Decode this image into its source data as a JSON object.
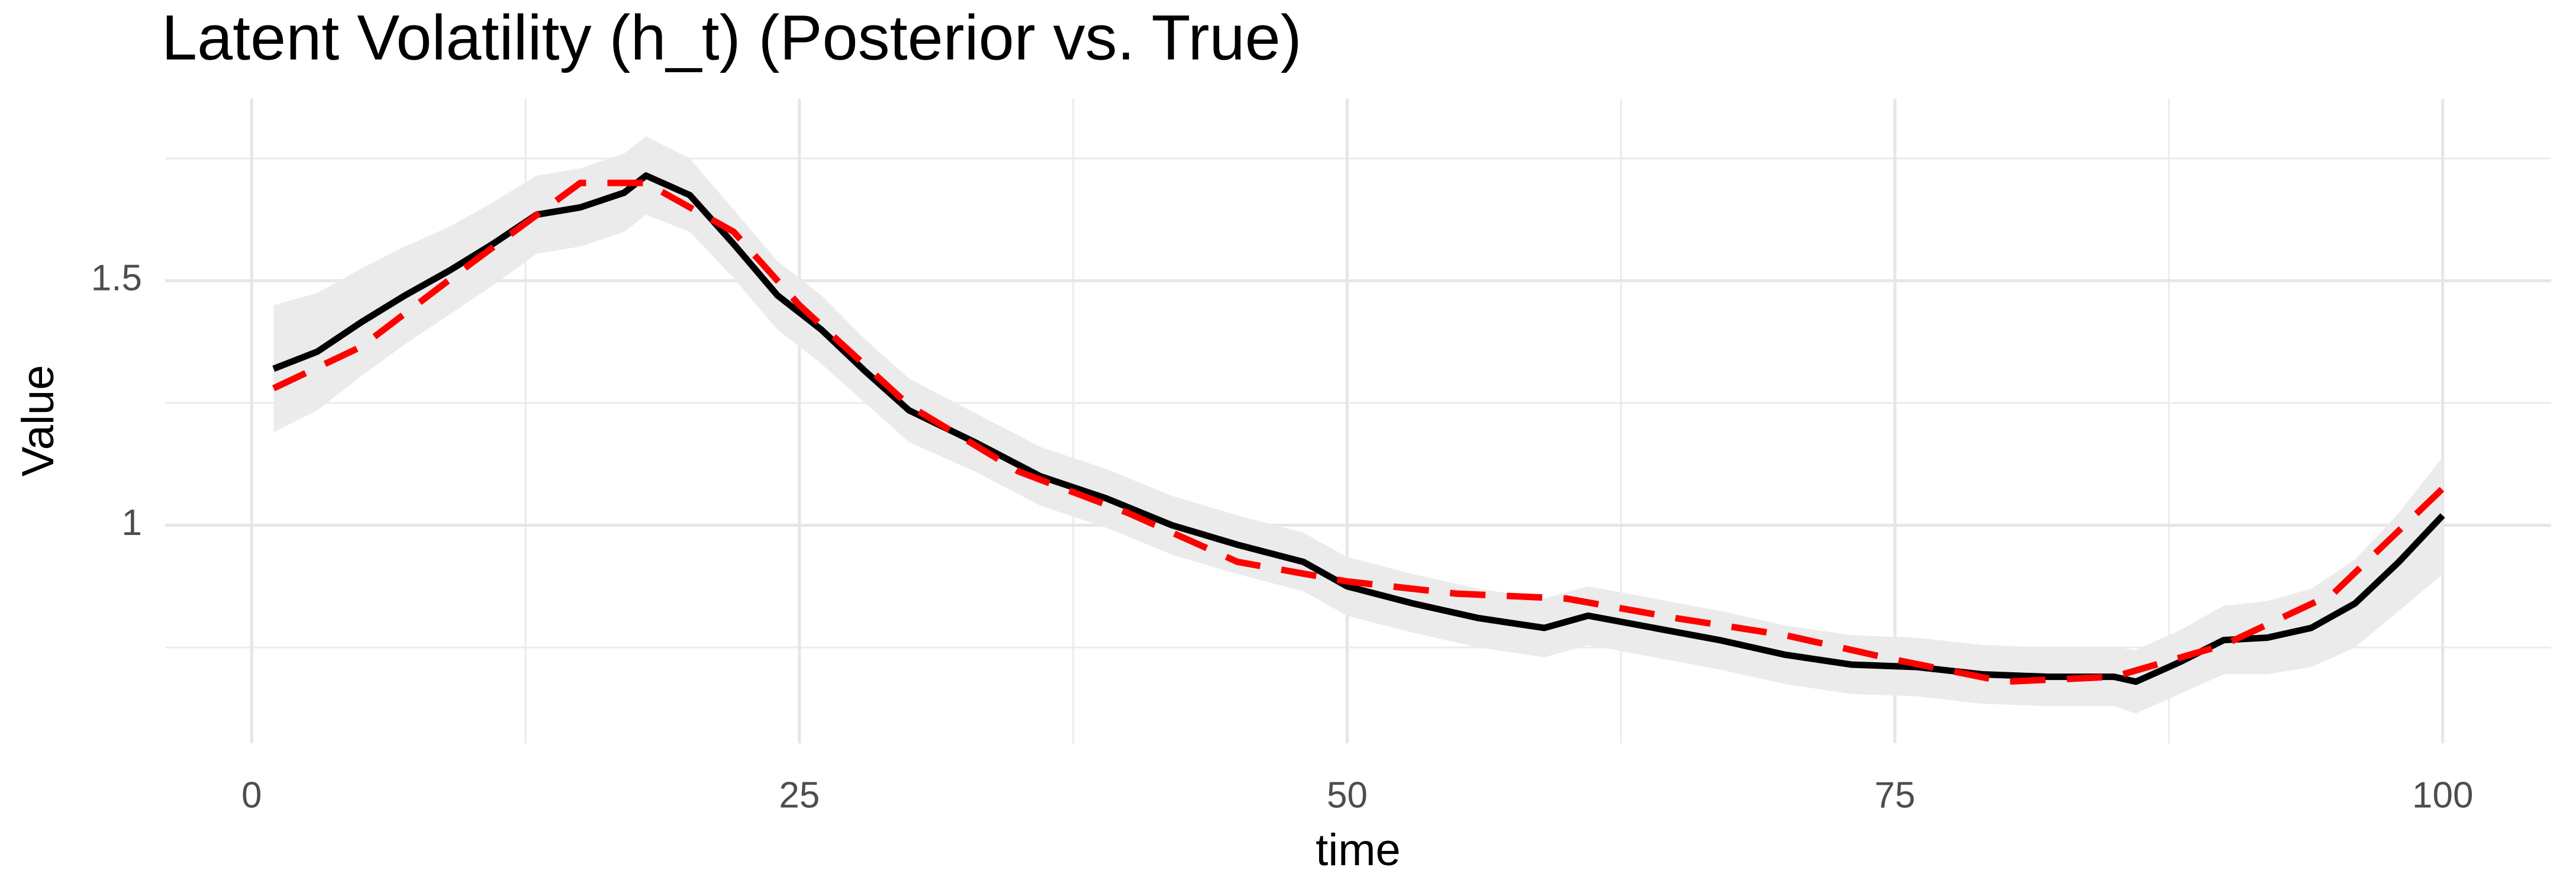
{
  "chart_data": {
    "type": "line",
    "title": "Latent Volatility (h_t) (Posterior vs. True)",
    "x_label": "time",
    "y_label": "Value",
    "xlim": [
      -3.95,
      104.95
    ],
    "ylim": [
      0.554,
      1.872
    ],
    "xticks": [
      0,
      25,
      50,
      75,
      100
    ],
    "yticks": [
      1.0,
      1.5
    ],
    "x_minor_ticks": [
      12.5,
      37.5,
      62.5,
      87.5
    ],
    "y_minor_ticks": [
      0.75,
      1.25,
      1.75
    ],
    "grid": true,
    "band": {
      "color": "#ebebeb",
      "x": [
        1,
        3,
        5,
        7,
        9,
        11,
        13,
        15,
        17,
        18,
        20,
        22,
        24,
        26,
        28,
        30,
        33,
        36,
        39,
        42,
        45,
        48,
        50,
        53,
        56,
        59,
        61,
        64,
        67,
        70,
        73,
        76,
        79,
        82,
        85,
        86,
        88,
        90,
        92,
        94,
        96,
        98,
        100
      ],
      "lower": [
        1.19,
        1.235,
        1.305,
        1.37,
        1.43,
        1.49,
        1.555,
        1.57,
        1.6,
        1.635,
        1.6,
        1.505,
        1.4,
        1.33,
        1.25,
        1.17,
        1.11,
        1.04,
        0.995,
        0.94,
        0.9,
        0.865,
        0.815,
        0.78,
        0.75,
        0.73,
        0.755,
        0.73,
        0.705,
        0.675,
        0.655,
        0.65,
        0.635,
        0.63,
        0.63,
        0.615,
        0.655,
        0.695,
        0.695,
        0.71,
        0.75,
        0.825,
        0.9
      ],
      "upper": [
        1.45,
        1.475,
        1.525,
        1.57,
        1.61,
        1.66,
        1.715,
        1.73,
        1.76,
        1.795,
        1.75,
        1.645,
        1.54,
        1.47,
        1.38,
        1.3,
        1.23,
        1.16,
        1.115,
        1.06,
        1.02,
        0.985,
        0.935,
        0.9,
        0.87,
        0.85,
        0.875,
        0.85,
        0.825,
        0.795,
        0.775,
        0.77,
        0.755,
        0.75,
        0.75,
        0.745,
        0.785,
        0.835,
        0.845,
        0.87,
        0.93,
        1.025,
        1.14
      ]
    },
    "series": [
      {
        "color": "#000000",
        "dashed": false,
        "x": [
          1,
          3,
          5,
          7,
          9,
          11,
          13,
          15,
          17,
          18,
          20,
          22,
          24,
          26,
          28,
          30,
          33,
          36,
          39,
          42,
          45,
          48,
          50,
          53,
          56,
          59,
          61,
          64,
          67,
          70,
          73,
          76,
          79,
          82,
          85,
          86,
          88,
          90,
          92,
          94,
          96,
          98,
          100
        ],
        "values": [
          1.32,
          1.355,
          1.415,
          1.47,
          1.52,
          1.575,
          1.635,
          1.65,
          1.68,
          1.715,
          1.675,
          1.575,
          1.47,
          1.4,
          1.315,
          1.235,
          1.17,
          1.1,
          1.055,
          1.0,
          0.96,
          0.925,
          0.875,
          0.84,
          0.81,
          0.79,
          0.815,
          0.79,
          0.765,
          0.735,
          0.715,
          0.71,
          0.695,
          0.69,
          0.69,
          0.68,
          0.72,
          0.765,
          0.77,
          0.79,
          0.84,
          0.925,
          1.02
        ]
      },
      {
        "color": "#ff0000",
        "dashed": true,
        "x": [
          1,
          5,
          10,
          15,
          18,
          22,
          25,
          30,
          35,
          40,
          45,
          50,
          55,
          60,
          65,
          70,
          75,
          80,
          85,
          90,
          95,
          100
        ],
        "values": [
          1.28,
          1.365,
          1.535,
          1.7,
          1.7,
          1.6,
          1.45,
          1.245,
          1.11,
          1.025,
          0.925,
          0.885,
          0.86,
          0.85,
          0.81,
          0.775,
          0.725,
          0.68,
          0.69,
          0.755,
          0.86,
          1.075
        ]
      }
    ]
  }
}
